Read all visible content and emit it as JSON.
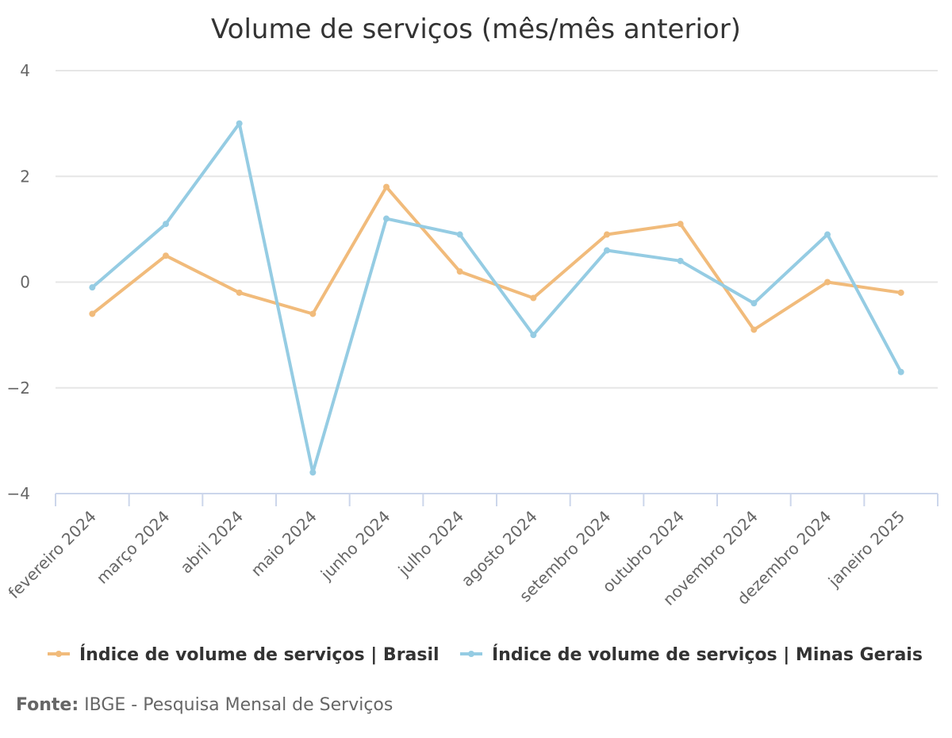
{
  "chart_data": {
    "type": "line",
    "title": "Volume de serviços (mês/mês anterior)",
    "xlabel": "",
    "ylabel": "",
    "categories": [
      "fevereiro 2024",
      "março 2024",
      "abril 2024",
      "maio 2024",
      "junho 2024",
      "julho 2024",
      "agosto 2024",
      "setembro 2024",
      "outubro 2024",
      "novembro 2024",
      "dezembro 2024",
      "janeiro 2025"
    ],
    "ylim": [
      -4,
      4
    ],
    "yticks": [
      4,
      2,
      0,
      -2,
      -4
    ],
    "ytick_labels": [
      "4",
      "2",
      "0",
      "−2",
      "−4"
    ],
    "grid": true,
    "legend_position": "bottom",
    "series": [
      {
        "name": "Índice de volume de serviços | Brasil",
        "color": "#f1bb7b",
        "values": [
          -0.6,
          0.5,
          -0.2,
          -0.6,
          1.8,
          0.2,
          -0.3,
          0.9,
          1.1,
          -0.9,
          0.0,
          -0.2
        ]
      },
      {
        "name": "Índice de volume de serviços | Minas Gerais",
        "color": "#95cce3",
        "values": [
          -0.1,
          1.1,
          3.0,
          -3.6,
          1.2,
          0.9,
          -1.0,
          0.6,
          0.4,
          -0.4,
          0.9,
          -1.7
        ]
      }
    ]
  },
  "source": {
    "label": "Fonte:",
    "text": "IBGE - Pesquisa Mensal de Serviços"
  }
}
